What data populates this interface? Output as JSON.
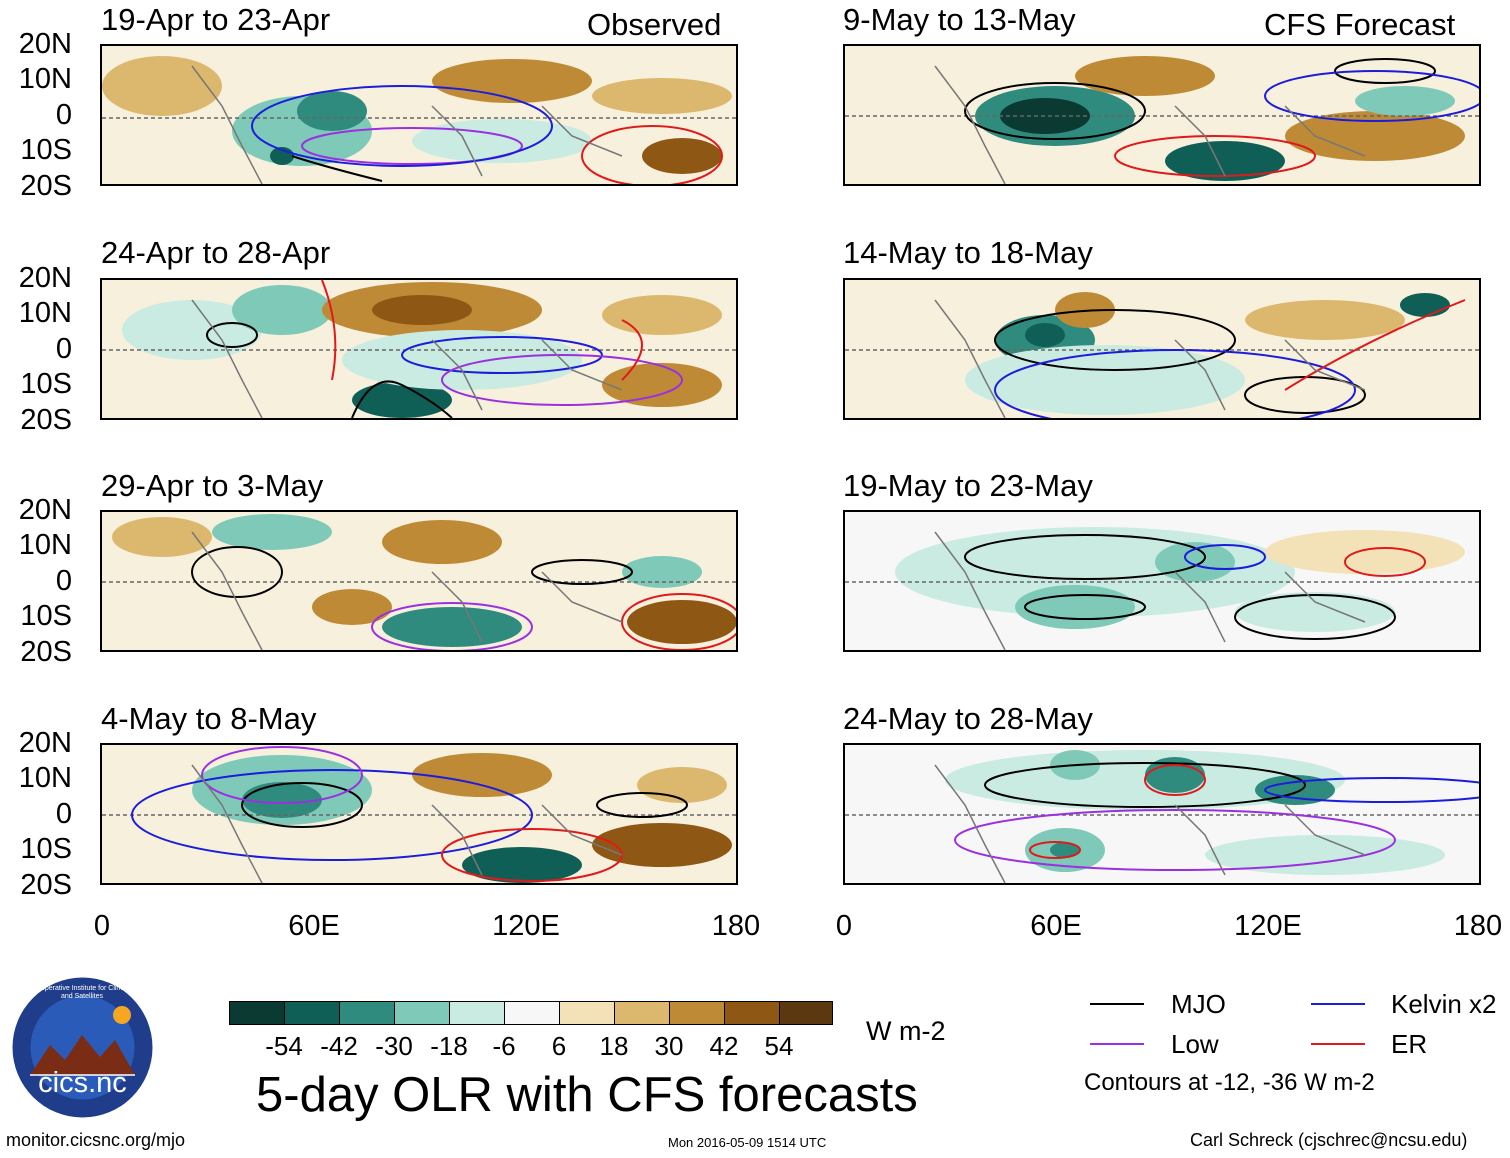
{
  "figure": {
    "title": "5-day OLR with CFS forecasts",
    "left_label": "Observed",
    "right_label": "CFS Forecast",
    "footer_left": "monitor.cicsnc.org/mjo",
    "footer_center": "Mon 2016-05-09 1514 UTC",
    "footer_right": "Carl Schreck (cjschrec@ncsu.edu)",
    "logo_text": "cics.nc",
    "logo_ring_text": "Cooperative Institute for Climate and Satellites"
  },
  "panels": {
    "observed": [
      {
        "title": "19-Apr to 23-Apr"
      },
      {
        "title": "24-Apr to 28-Apr"
      },
      {
        "title": "29-Apr to 3-May"
      },
      {
        "title": "4-May to 8-May"
      }
    ],
    "forecast": [
      {
        "title": "9-May to 13-May"
      },
      {
        "title": "14-May to 18-May"
      },
      {
        "title": "19-May to 23-May"
      },
      {
        "title": "24-May to 28-May"
      }
    ]
  },
  "axes": {
    "lat_labels": [
      "20N",
      "10N",
      "0",
      "10S",
      "20S"
    ],
    "lon_labels": [
      "0",
      "60E",
      "120E",
      "180"
    ]
  },
  "colorbar": {
    "units": "W m-2",
    "labels": [
      "-54",
      "-42",
      "-30",
      "-18",
      "-6",
      "6",
      "18",
      "30",
      "42",
      "54"
    ],
    "colors": [
      "#0b3a32",
      "#0f5f56",
      "#2e8b7e",
      "#7fc9b8",
      "#c9ebe1",
      "#f7f7f7",
      "#f3e2b8",
      "#dcb86f",
      "#bf8a36",
      "#8f5714",
      "#5b3810"
    ]
  },
  "legend": {
    "items": [
      {
        "label": "MJO",
        "color": "#000000"
      },
      {
        "label": "Kelvin x2",
        "color": "#1c1cdc"
      },
      {
        "label": "Low",
        "color": "#9b30e0"
      },
      {
        "label": "ER",
        "color": "#e01a1a"
      }
    ],
    "note": "Contours at -12, -36 W m-2"
  }
}
